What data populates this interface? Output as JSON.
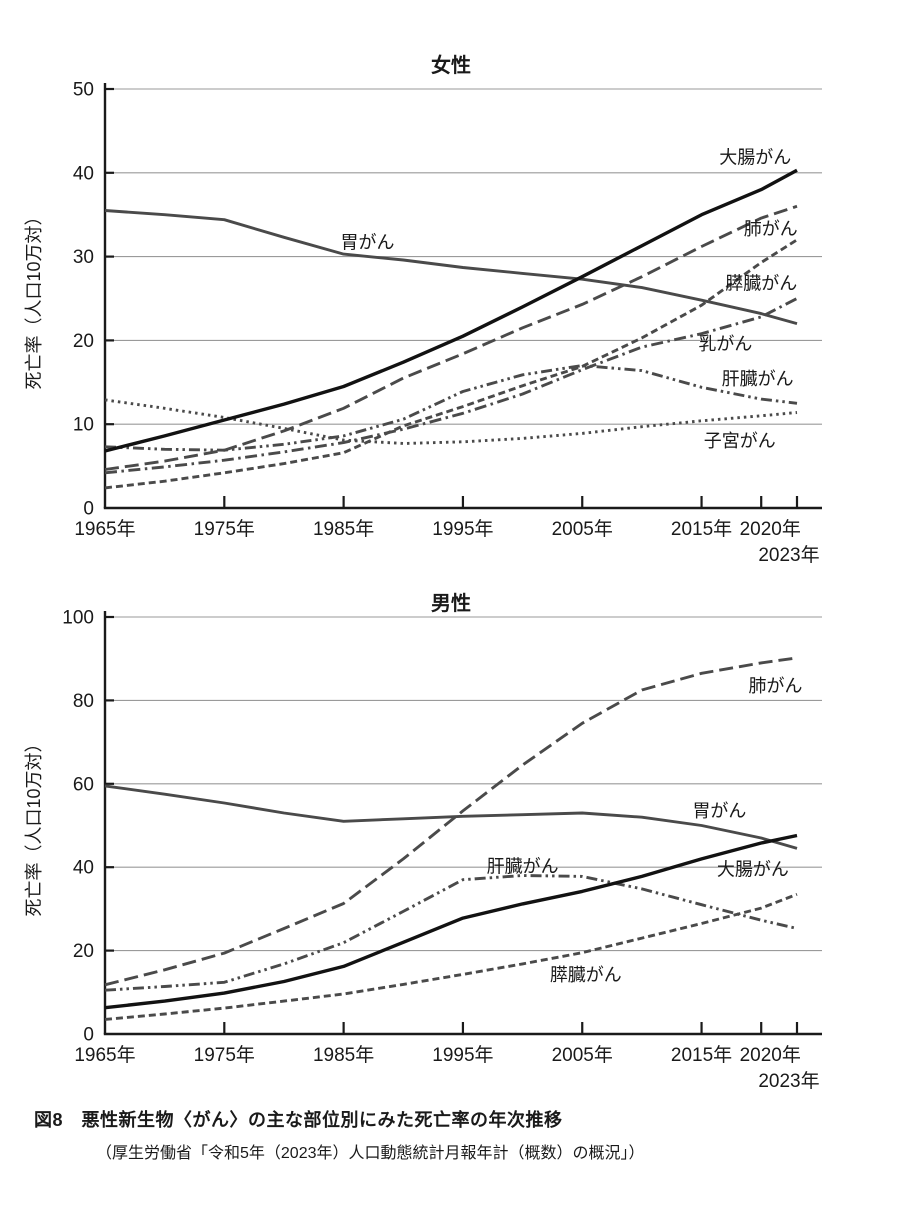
{
  "caption": {
    "title": "図8　悪性新生物〈がん〉の主な部位別にみた死亡率の年次推移",
    "source": "（厚生労働省「令和5年（2023年）人口動態統計月報年計（概数）の概況」）"
  },
  "colors": {
    "line_gray": "#4a4a4a",
    "line_black": "#121212",
    "grid": "#9a9a9a",
    "axis": "#1a1a1a",
    "text": "#1a1a1a",
    "background": "#ffffff"
  },
  "chart_data": [
    {
      "type": "line",
      "title": "女性",
      "ylabel": "死亡率（人口10万対）",
      "xlabel": "",
      "grid": true,
      "legend_position": "inline-labels",
      "ylim": [
        0,
        50
      ],
      "yticks": [
        0,
        10,
        20,
        30,
        40,
        50
      ],
      "x": [
        1965,
        1970,
        1975,
        1980,
        1985,
        1990,
        1995,
        2000,
        2005,
        2010,
        2015,
        2020,
        2023
      ],
      "xticks": [
        {
          "year": 1965,
          "label": "1965年",
          "row": 1,
          "dx": 0
        },
        {
          "year": 1975,
          "label": "1975年",
          "row": 1,
          "dx": 0
        },
        {
          "year": 1985,
          "label": "1985年",
          "row": 1,
          "dx": 0
        },
        {
          "year": 1995,
          "label": "1995年",
          "row": 1,
          "dx": 0
        },
        {
          "year": 2005,
          "label": "2005年",
          "row": 1,
          "dx": 0
        },
        {
          "year": 2015,
          "label": "2015年",
          "row": 1,
          "dx": 0
        },
        {
          "year": 2020,
          "label": "2020年",
          "row": 1,
          "dx": 9
        },
        {
          "year": 2023,
          "label": "2023年",
          "row": 2,
          "dx": -8
        }
      ],
      "series": [
        {
          "id": "uterus",
          "name": "子宮がん",
          "dash": "dotted",
          "color": "gray",
          "values": [
            12.9,
            11.9,
            10.8,
            9.5,
            8.1,
            7.7,
            7.9,
            8.3,
            8.9,
            9.7,
            10.4,
            11.0,
            11.4
          ],
          "label_at": {
            "year": 2018.2,
            "value": 8.0
          }
        },
        {
          "id": "liver",
          "name": "肝臓がん",
          "dash": "dash-dot-dot",
          "color": "gray",
          "values": [
            7.3,
            7.0,
            6.9,
            7.6,
            8.6,
            10.6,
            13.9,
            15.9,
            17.0,
            16.4,
            14.4,
            13.0,
            12.5
          ],
          "label_at": {
            "year": 2019.7,
            "value": 15.4
          }
        },
        {
          "id": "breast",
          "name": "乳がん",
          "dash": "dash-dot",
          "color": "gray",
          "values": [
            4.2,
            4.9,
            5.7,
            6.7,
            7.8,
            9.4,
            11.3,
            13.6,
            16.5,
            19.2,
            20.8,
            22.8,
            25.0
          ],
          "label_at": {
            "year": 2017.0,
            "value": 19.6
          }
        },
        {
          "id": "pancreas",
          "name": "膵臓がん",
          "dash": "short-dash",
          "color": "gray",
          "values": [
            2.4,
            3.2,
            4.2,
            5.3,
            6.6,
            9.8,
            12.1,
            14.6,
            16.9,
            20.3,
            24.2,
            29.3,
            32.0
          ],
          "label_at": {
            "year": 2020.0,
            "value": 26.8
          }
        },
        {
          "id": "lung",
          "name": "肺がん",
          "dash": "long-dash",
          "color": "gray",
          "values": [
            4.6,
            5.6,
            6.9,
            9.2,
            11.9,
            15.5,
            18.4,
            21.5,
            24.3,
            27.6,
            31.2,
            34.6,
            36.0
          ],
          "label_at": {
            "year": 2020.8,
            "value": 33.3
          }
        },
        {
          "id": "stomach",
          "name": "胃がん",
          "dash": "solid",
          "color": "gray",
          "values": [
            35.5,
            35.0,
            34.4,
            32.3,
            30.3,
            29.6,
            28.7,
            28.0,
            27.3,
            26.3,
            24.8,
            23.2,
            22.0
          ],
          "label_at": {
            "year": 1987.0,
            "value": 31.7
          }
        },
        {
          "id": "colorectal",
          "name": "大腸がん",
          "dash": "solid",
          "color": "black",
          "values": [
            6.8,
            8.6,
            10.5,
            12.4,
            14.5,
            17.4,
            20.5,
            24.0,
            27.6,
            31.3,
            35.0,
            38.0,
            40.3
          ],
          "label_at": {
            "year": 2019.5,
            "value": 41.8
          }
        }
      ]
    },
    {
      "type": "line",
      "title": "男性",
      "ylabel": "死亡率（人口10万対）",
      "xlabel": "",
      "grid": true,
      "legend_position": "inline-labels",
      "ylim": [
        0,
        100
      ],
      "yticks": [
        0,
        20,
        40,
        60,
        80,
        100
      ],
      "x": [
        1965,
        1970,
        1975,
        1980,
        1985,
        1990,
        1995,
        2000,
        2005,
        2010,
        2015,
        2020,
        2023
      ],
      "xticks": [
        {
          "year": 1965,
          "label": "1965年",
          "row": 1,
          "dx": 0
        },
        {
          "year": 1975,
          "label": "1975年",
          "row": 1,
          "dx": 0
        },
        {
          "year": 1985,
          "label": "1985年",
          "row": 1,
          "dx": 0
        },
        {
          "year": 1995,
          "label": "1995年",
          "row": 1,
          "dx": 0
        },
        {
          "year": 2005,
          "label": "2005年",
          "row": 1,
          "dx": 0
        },
        {
          "year": 2015,
          "label": "2015年",
          "row": 1,
          "dx": 0
        },
        {
          "year": 2020,
          "label": "2020年",
          "row": 1,
          "dx": 9
        },
        {
          "year": 2023,
          "label": "2023年",
          "row": 2,
          "dx": -8
        }
      ],
      "series": [
        {
          "id": "liver",
          "name": "肝臓がん",
          "dash": "dash-dot-dot",
          "color": "gray",
          "values": [
            10.5,
            11.4,
            12.4,
            16.8,
            21.9,
            29.4,
            37.0,
            38.0,
            37.8,
            34.8,
            31.0,
            27.3,
            25.3
          ],
          "label_at": {
            "year": 2000.0,
            "value": 40.2
          }
        },
        {
          "id": "pancreas",
          "name": "膵臓がん",
          "dash": "short-dash",
          "color": "gray",
          "values": [
            3.5,
            4.8,
            6.2,
            7.9,
            9.6,
            11.9,
            14.3,
            16.8,
            19.5,
            23.0,
            26.5,
            30.2,
            33.5
          ],
          "label_at": {
            "year": 2005.3,
            "value": 14.2
          }
        },
        {
          "id": "stomach",
          "name": "胃がん",
          "dash": "solid",
          "color": "gray",
          "values": [
            59.5,
            57.5,
            55.4,
            53.0,
            51.0,
            51.6,
            52.2,
            52.6,
            53.0,
            52.0,
            50.0,
            47.0,
            44.5
          ],
          "label_at": {
            "year": 2016.5,
            "value": 53.5
          }
        },
        {
          "id": "lung",
          "name": "肺がん",
          "dash": "long-dash",
          "color": "gray",
          "values": [
            11.8,
            15.4,
            19.4,
            25.3,
            31.3,
            42.0,
            53.5,
            64.5,
            74.5,
            82.5,
            86.5,
            89.0,
            90.2
          ],
          "label_at": {
            "year": 2021.2,
            "value": 83.5
          }
        },
        {
          "id": "colorectal",
          "name": "大腸がん",
          "dash": "solid",
          "color": "black",
          "values": [
            6.3,
            7.9,
            9.8,
            12.6,
            16.2,
            22.0,
            27.8,
            31.2,
            34.2,
            37.8,
            42.0,
            45.8,
            47.6
          ],
          "label_at": {
            "year": 2019.3,
            "value": 39.5
          }
        }
      ]
    }
  ]
}
